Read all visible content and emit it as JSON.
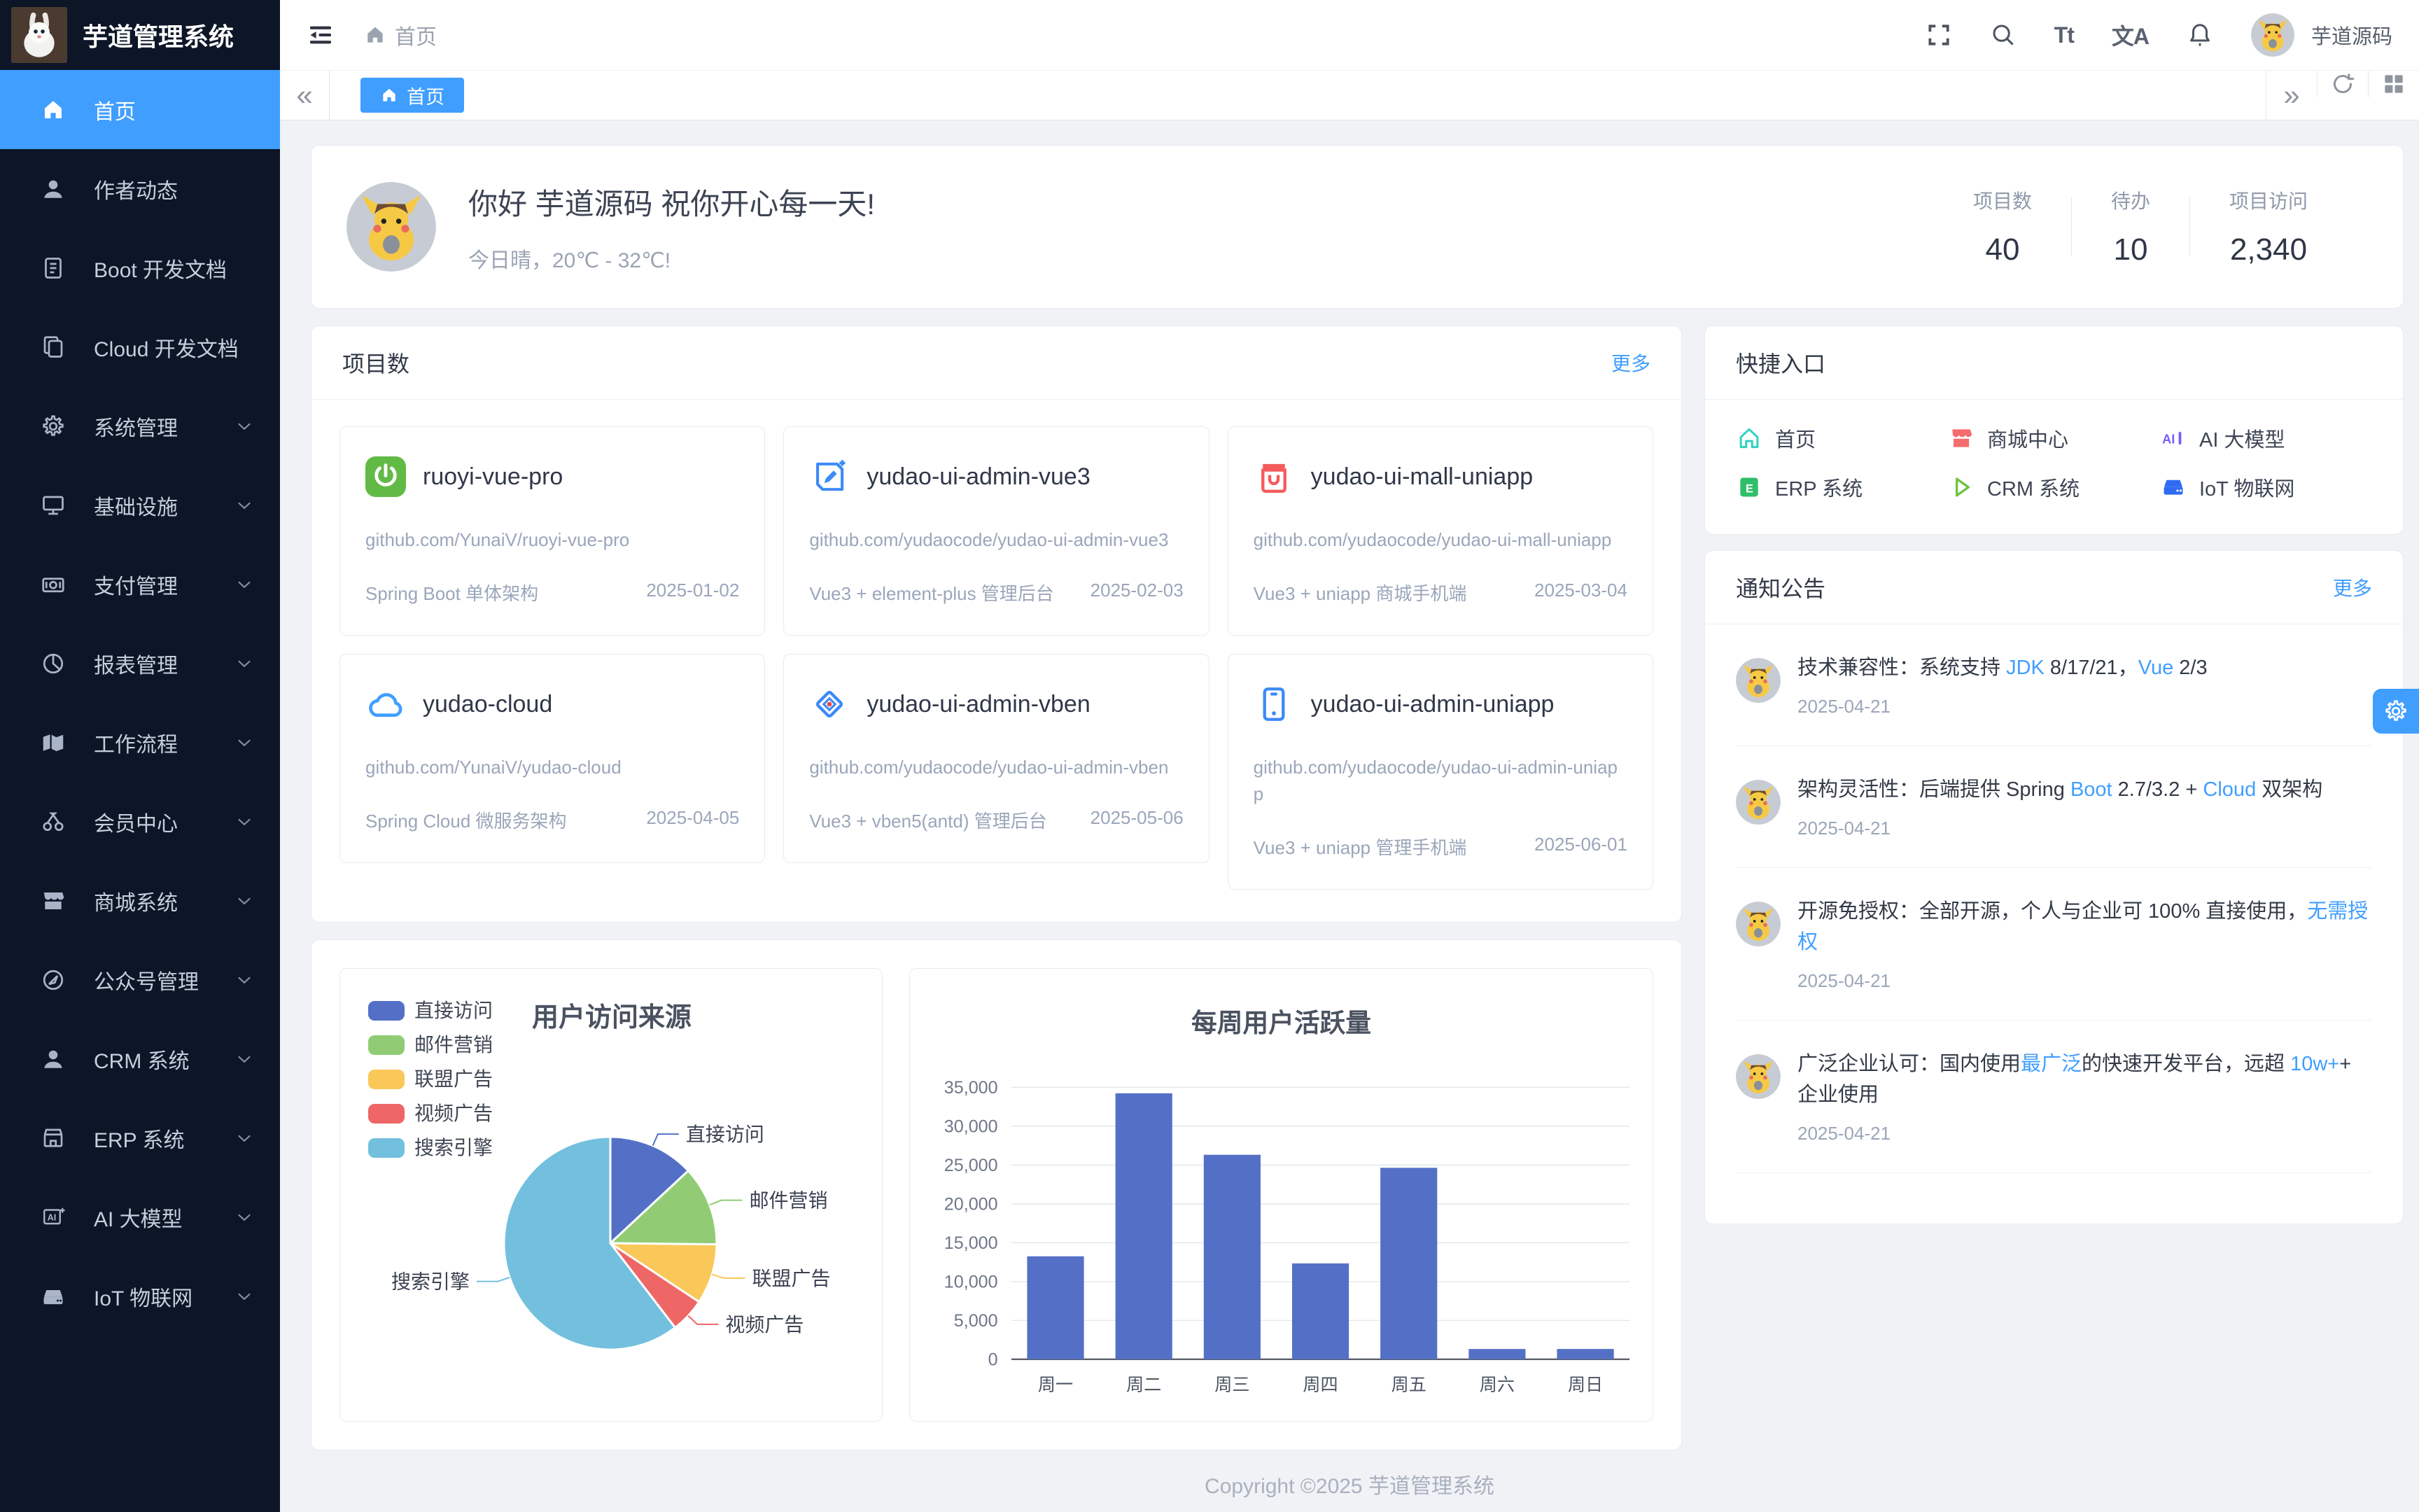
{
  "colors": {
    "primary": "#409eff",
    "sidebar_bg": "#0c1626",
    "bar_color": "#5470c6"
  },
  "app": {
    "logo_icon": "rabbit-logo-icon",
    "title": "芋道管理系统"
  },
  "topbar": {
    "hamburger_icon": "collapse-menu-icon",
    "breadcrumb": {
      "icon": "home-icon",
      "label": "首页"
    },
    "font_size_glyph": "Tt",
    "language_glyph": "文A",
    "user": {
      "avatar_icon": "pikachu-avatar",
      "name": "芋道源码"
    }
  },
  "tabbar": {
    "collapse_glyph": "«",
    "expand_glyph": "»",
    "active_tab": {
      "icon": "home-icon",
      "label": "首页"
    }
  },
  "sidebar": {
    "items": [
      {
        "icon": "home-icon",
        "label": "首页",
        "active": true,
        "expandable": false
      },
      {
        "icon": "user-icon",
        "label": "作者动态",
        "expandable": false
      },
      {
        "icon": "doc-icon",
        "label": "Boot 开发文档",
        "expandable": false
      },
      {
        "icon": "copy-icon",
        "label": "Cloud 开发文档",
        "expandable": false
      },
      {
        "icon": "gear-icon",
        "label": "系统管理",
        "expandable": true
      },
      {
        "icon": "monitor-icon",
        "label": "基础设施",
        "expandable": true
      },
      {
        "icon": "money-icon",
        "label": "支付管理",
        "expandable": true
      },
      {
        "icon": "piechart-icon",
        "label": "报表管理",
        "expandable": true
      },
      {
        "icon": "workflow-icon",
        "label": "工作流程",
        "expandable": true
      },
      {
        "icon": "member-icon",
        "label": "会员中心",
        "expandable": true
      },
      {
        "icon": "shop-icon",
        "label": "商城系统",
        "expandable": true
      },
      {
        "icon": "compass-icon",
        "label": "公众号管理",
        "expandable": true
      },
      {
        "icon": "crm-user-icon",
        "label": "CRM 系统",
        "expandable": true
      },
      {
        "icon": "store-icon",
        "label": "ERP 系统",
        "expandable": true
      },
      {
        "icon": "ai-icon",
        "label": "AI 大模型",
        "expandable": true
      },
      {
        "icon": "iot-icon",
        "label": "IoT 物联网",
        "expandable": true
      }
    ]
  },
  "greeting": {
    "avatar_icon": "pikachu-avatar",
    "title": "你好 芋道源码 祝你开心每一天!",
    "subtitle": "今日晴，20℃ - 32℃!"
  },
  "stats": [
    {
      "label": "项目数",
      "value": "40"
    },
    {
      "label": "待办",
      "value": "10"
    },
    {
      "label": "项目访问",
      "value": "2,340"
    }
  ],
  "projects": {
    "title": "项目数",
    "more_label": "更多",
    "cards": [
      {
        "icon": "spring-icon",
        "name": "ruoyi-vue-pro",
        "url": "github.com/YunaiV/ruoyi-vue-pro",
        "desc": "Spring Boot 单体架构",
        "date": "2025-01-02"
      },
      {
        "icon": "vue3-icon",
        "name": "yudao-ui-admin-vue3",
        "url": "github.com/yudaocode/yudao-ui-admin-vue3",
        "desc": "Vue3 + element-plus 管理后台",
        "date": "2025-02-03"
      },
      {
        "icon": "mall-icon",
        "name": "yudao-ui-mall-uniapp",
        "url": "github.com/yudaocode/yudao-ui-mall-uniapp",
        "desc": "Vue3 + uniapp 商城手机端",
        "date": "2025-03-04"
      },
      {
        "icon": "cloud-icon",
        "name": "yudao-cloud",
        "url": "github.com/YunaiV/yudao-cloud",
        "desc": "Spring Cloud 微服务架构",
        "date": "2025-04-05"
      },
      {
        "icon": "vben-icon",
        "name": "yudao-ui-admin-vben",
        "url": "github.com/yudaocode/yudao-ui-admin-vben",
        "desc": "Vue3 + vben5(antd) 管理后台",
        "date": "2025-05-06"
      },
      {
        "icon": "uniapp-icon",
        "name": "yudao-ui-admin-uniapp",
        "url": "github.com/yudaocode/yudao-ui-admin-uniapp",
        "desc": "Vue3 + uniapp 管理手机端",
        "date": "2025-06-01"
      }
    ]
  },
  "shortcuts": {
    "title": "快捷入口",
    "items": [
      {
        "icon": "q-home-icon",
        "color": "#2dd4bf",
        "label": "首页"
      },
      {
        "icon": "q-shop-icon",
        "color": "#f56c6c",
        "label": "商城中心"
      },
      {
        "icon": "q-ai-icon",
        "color": "#7c5cfc",
        "label": "AI 大模型"
      },
      {
        "icon": "q-erp-icon",
        "color": "#2fbe6a",
        "label": "ERP 系统"
      },
      {
        "icon": "q-crm-icon",
        "color": "#6ec33f",
        "label": "CRM 系统"
      },
      {
        "icon": "q-iot-icon",
        "color": "#2f6bf2",
        "label": "IoT 物联网"
      }
    ]
  },
  "notices": {
    "title": "通知公告",
    "more_label": "更多",
    "avatar_icon": "pikachu-avatar",
    "items": [
      {
        "segments": [
          {
            "text": "技术兼容性：系统支持 "
          },
          {
            "text": "JDK",
            "blue": true
          },
          {
            "text": " 8/17/21，"
          },
          {
            "text": "Vue",
            "blue": true
          },
          {
            "text": " 2/3"
          }
        ],
        "date": "2025-04-21"
      },
      {
        "segments": [
          {
            "text": "架构灵活性：后端提供 Spring "
          },
          {
            "text": "Boot",
            "blue": true
          },
          {
            "text": " 2.7/3.2 + "
          },
          {
            "text": "Cloud",
            "blue": true
          },
          {
            "text": " 双架构"
          }
        ],
        "date": "2025-04-21"
      },
      {
        "segments": [
          {
            "text": "开源免授权：全部开源，个人与企业可 100% 直接使用，"
          },
          {
            "text": "无需授权",
            "blue": true
          }
        ],
        "date": "2025-04-21"
      },
      {
        "segments": [
          {
            "text": "广泛企业认可：国内使用"
          },
          {
            "text": "最广泛",
            "blue": true
          },
          {
            "text": "的快速开发平台，远超 "
          },
          {
            "text": "10w+",
            "blue": true
          },
          {
            "text": "+ 企业使用"
          }
        ],
        "date": "2025-04-21"
      }
    ]
  },
  "chart_data": [
    {
      "type": "pie",
      "title": "用户访问来源",
      "legend_position": "left",
      "series": [
        {
          "name": "直接访问",
          "value": 335,
          "color": "#5470c6"
        },
        {
          "name": "邮件营销",
          "value": 310,
          "color": "#91cc75"
        },
        {
          "name": "联盟广告",
          "value": 234,
          "color": "#fac858"
        },
        {
          "name": "视频广告",
          "value": 135,
          "color": "#ee6666"
        },
        {
          "name": "搜索引擎",
          "value": 1548,
          "color": "#73c0de"
        }
      ]
    },
    {
      "type": "bar",
      "title": "每周用户活跃量",
      "categories": [
        "周一",
        "周二",
        "周三",
        "周四",
        "周五",
        "周六",
        "周日"
      ],
      "values": [
        13253,
        34235,
        26321,
        12340,
        24643,
        1322,
        1324
      ],
      "ylim": [
        0,
        35000
      ],
      "ytick_step": 5000,
      "bar_color": "#5470c6",
      "grid": true
    }
  ],
  "footer": {
    "text": "Copyright ©2025 芋道管理系统"
  }
}
